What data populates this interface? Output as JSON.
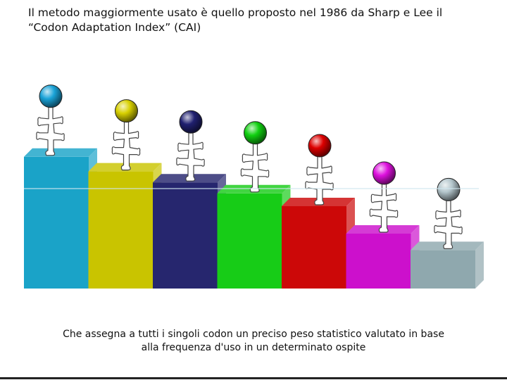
{
  "slide": {
    "title": "Il metodo maggiormente usato è quello proposto nel 1986 da Sharp e Lee il “Codon Adaptation Index” (CAI)",
    "caption_line1": "Che assegna a tutti i singoli codon un preciso peso statistico valutato in base",
    "caption_line2": "alla frequenza d'uso in un determinato ospite"
  },
  "illustration": {
    "bars": [
      {
        "name": "bar-cyan",
        "color": "#1aa3c8",
        "level": 0.72
      },
      {
        "name": "bar-yellow",
        "color": "#c9c400",
        "level": 0.64
      },
      {
        "name": "bar-navy",
        "color": "#26266e",
        "level": 0.58
      },
      {
        "name": "bar-green",
        "color": "#17cc17",
        "level": 0.52
      },
      {
        "name": "bar-red",
        "color": "#cc0808",
        "level": 0.45
      },
      {
        "name": "bar-magenta",
        "color": "#cc10cc",
        "level": 0.3
      },
      {
        "name": "bar-grey",
        "color": "#8fa8ae",
        "level": 0.21
      }
    ],
    "balls": [
      "#1aa3d8",
      "#d8d000",
      "#202070",
      "#10d010",
      "#dd0000",
      "#dd10dd",
      "#b4c6cc"
    ]
  }
}
